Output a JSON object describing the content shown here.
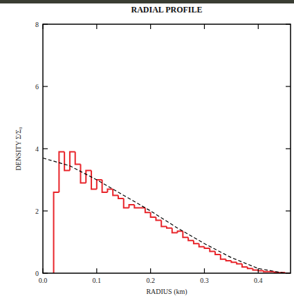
{
  "chart_data": {
    "type": "histogram",
    "title": "RADIAL PROFILE",
    "x_label": "RADIUS (km)",
    "y_label": "DENSITY Σ/Σ₀",
    "bins": [
      0.02,
      0.03,
      0.04,
      0.05,
      0.06,
      0.07,
      0.08,
      0.09,
      0.1,
      0.11,
      0.12,
      0.13,
      0.14,
      0.15,
      0.16,
      0.17,
      0.18,
      0.19,
      0.2,
      0.21,
      0.22,
      0.23,
      0.24,
      0.25,
      0.26,
      0.27,
      0.28,
      0.29,
      0.3,
      0.31,
      0.32,
      0.33,
      0.34,
      0.35,
      0.36,
      0.37,
      0.38,
      0.39,
      0.4,
      0.41,
      0.42,
      0.43,
      0.44,
      0.45,
      0.46
    ],
    "counts": [
      2.6,
      3.9,
      3.3,
      3.9,
      3.5,
      2.9,
      3.3,
      2.7,
      3.0,
      2.6,
      2.7,
      2.5,
      2.4,
      2.1,
      2.2,
      2.1,
      2.1,
      1.95,
      1.8,
      1.7,
      1.5,
      1.45,
      1.3,
      1.35,
      1.15,
      1.05,
      0.95,
      0.85,
      0.8,
      0.7,
      0.6,
      0.45,
      0.4,
      0.35,
      0.3,
      0.2,
      0.15,
      0.1,
      0.08,
      0.05,
      0.05,
      0.02,
      0.02,
      0.0
    ],
    "color": "#e8242a",
    "fit": {
      "type": "line",
      "x": [
        0,
        0.05,
        0.1,
        0.15,
        0.2,
        0.25,
        0.3,
        0.35,
        0.4,
        0.45
      ],
      "values": [
        3.7,
        3.45,
        3.0,
        2.5,
        2.0,
        1.45,
        0.95,
        0.5,
        0.15,
        0.0
      ],
      "color": "#000000",
      "line_style": "dashed"
    },
    "xlim": [
      0,
      0.46
    ],
    "ylim": [
      0,
      8
    ],
    "xticks": [
      {
        "value": 0,
        "label": "0.0"
      },
      0.1,
      0.2,
      0.3,
      0.4
    ],
    "yticks": [
      0,
      2,
      4,
      6,
      8
    ]
  }
}
